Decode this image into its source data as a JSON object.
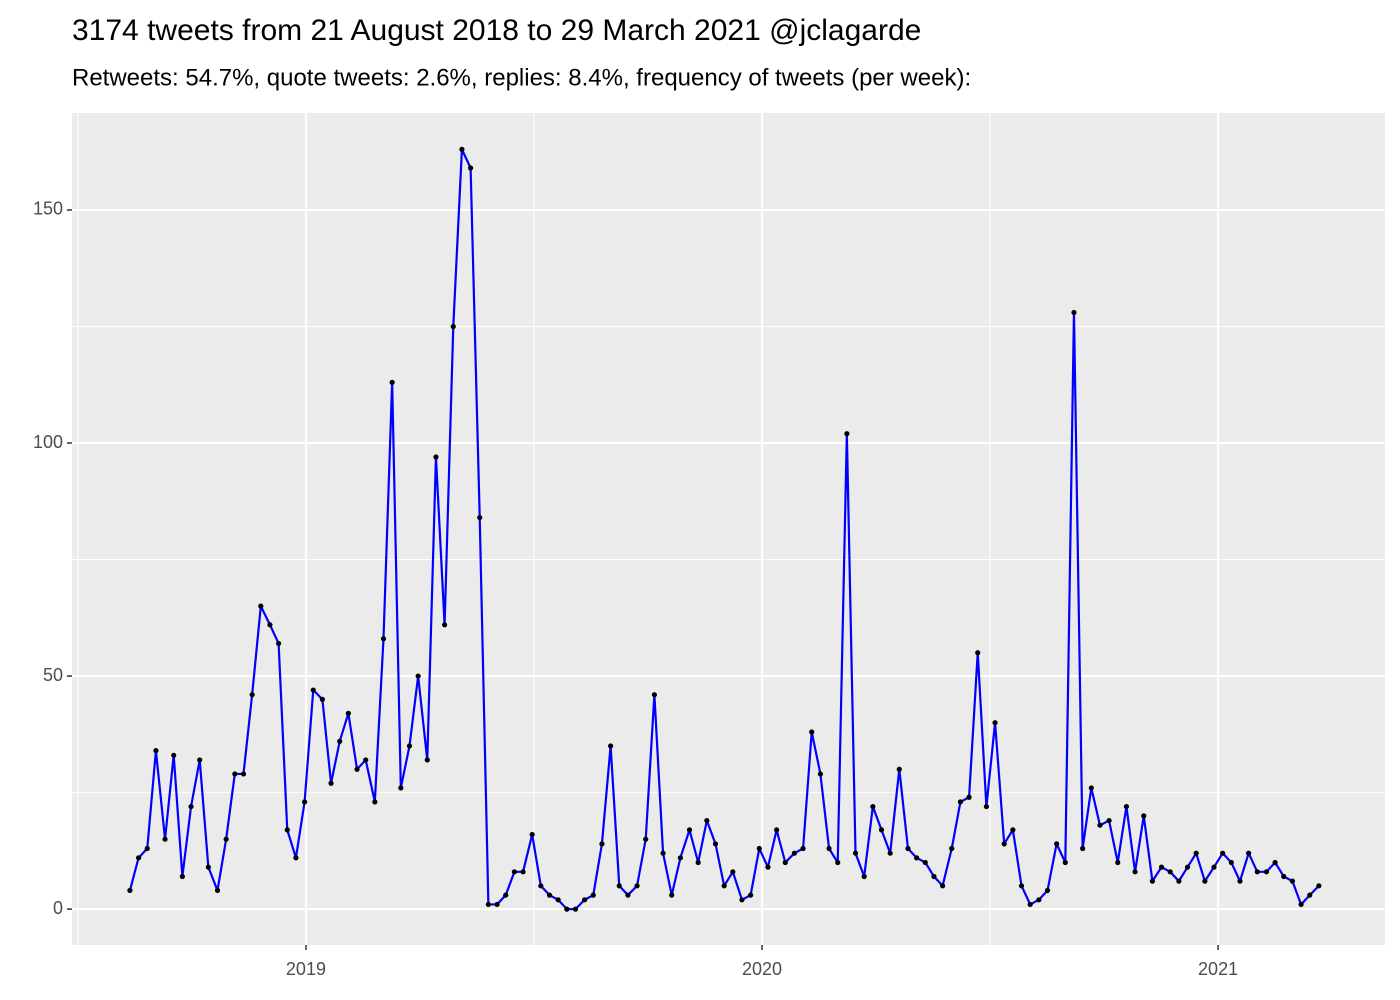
{
  "chart_data": {
    "type": "line",
    "title": "3174 tweets from 21 August 2018 to 29 March 2021 @jclagarde",
    "subtitle": "Retweets: 54.7%, quote tweets: 2.6%, replies: 8.4%, frequency of tweets (per week):",
    "x": [
      2018.614,
      2018.633,
      2018.652,
      2018.671,
      2018.691,
      2018.71,
      2018.729,
      2018.748,
      2018.767,
      2018.786,
      2018.806,
      2018.825,
      2018.844,
      2018.863,
      2018.882,
      2018.901,
      2018.921,
      2018.94,
      2018.959,
      2018.978,
      2018.997,
      2019.016,
      2019.036,
      2019.055,
      2019.074,
      2019.093,
      2019.112,
      2019.131,
      2019.151,
      2019.17,
      2019.189,
      2019.208,
      2019.227,
      2019.246,
      2019.266,
      2019.285,
      2019.304,
      2019.323,
      2019.342,
      2019.361,
      2019.381,
      2019.4,
      2019.419,
      2019.438,
      2019.457,
      2019.476,
      2019.496,
      2019.515,
      2019.534,
      2019.553,
      2019.572,
      2019.591,
      2019.611,
      2019.63,
      2019.649,
      2019.668,
      2019.687,
      2019.706,
      2019.726,
      2019.745,
      2019.764,
      2019.783,
      2019.802,
      2019.821,
      2019.841,
      2019.86,
      2019.879,
      2019.898,
      2019.917,
      2019.936,
      2019.956,
      2019.975,
      2019.994,
      2020.013,
      2020.032,
      2020.051,
      2020.071,
      2020.09,
      2020.109,
      2020.128,
      2020.147,
      2020.166,
      2020.186,
      2020.205,
      2020.224,
      2020.243,
      2020.262,
      2020.281,
      2020.301,
      2020.32,
      2020.339,
      2020.358,
      2020.377,
      2020.396,
      2020.416,
      2020.435,
      2020.454,
      2020.473,
      2020.492,
      2020.511,
      2020.531,
      2020.55,
      2020.569,
      2020.588,
      2020.607,
      2020.626,
      2020.646,
      2020.665,
      2020.684,
      2020.703,
      2020.722,
      2020.741,
      2020.761,
      2020.78,
      2020.799,
      2020.818,
      2020.837,
      2020.856,
      2020.876,
      2020.895,
      2020.914,
      2020.933,
      2020.952,
      2020.971,
      2020.991,
      2021.01,
      2021.029,
      2021.048,
      2021.067,
      2021.086,
      2021.106,
      2021.125,
      2021.144,
      2021.163,
      2021.182,
      2021.201,
      2021.221
    ],
    "values": [
      4,
      11,
      13,
      34,
      15,
      33,
      7,
      22,
      32,
      9,
      4,
      15,
      29,
      29,
      46,
      65,
      61,
      57,
      17,
      11,
      23,
      47,
      45,
      27,
      36,
      42,
      30,
      32,
      23,
      58,
      113,
      26,
      35,
      50,
      32,
      97,
      61,
      125,
      163,
      159,
      84,
      1,
      1,
      3,
      8,
      8,
      16,
      5,
      3,
      2,
      0,
      0,
      2,
      3,
      14,
      35,
      5,
      3,
      5,
      15,
      46,
      12,
      3,
      11,
      17,
      10,
      19,
      14,
      5,
      8,
      2,
      3,
      13,
      9,
      17,
      10,
      12,
      13,
      38,
      29,
      13,
      10,
      102,
      12,
      7,
      22,
      17,
      12,
      30,
      13,
      11,
      10,
      7,
      5,
      13,
      23,
      24,
      55,
      22,
      40,
      14,
      17,
      5,
      1,
      2,
      4,
      14,
      10,
      128,
      13,
      26,
      18,
      19,
      10,
      22,
      8,
      20,
      6,
      9,
      8,
      6,
      9,
      12,
      6,
      9,
      12,
      10,
      6,
      12,
      8,
      8,
      10,
      7,
      6,
      1,
      3,
      5
    ],
    "color": "#0000ff",
    "point_color": "#000000",
    "xlim": [
      2018.487,
      2021.366
    ],
    "xticks": [
      2019,
      2020,
      2021
    ],
    "ylim": [
      -7.7,
      170.8
    ],
    "yticks": [
      0,
      50,
      100,
      150
    ],
    "grid": true
  }
}
